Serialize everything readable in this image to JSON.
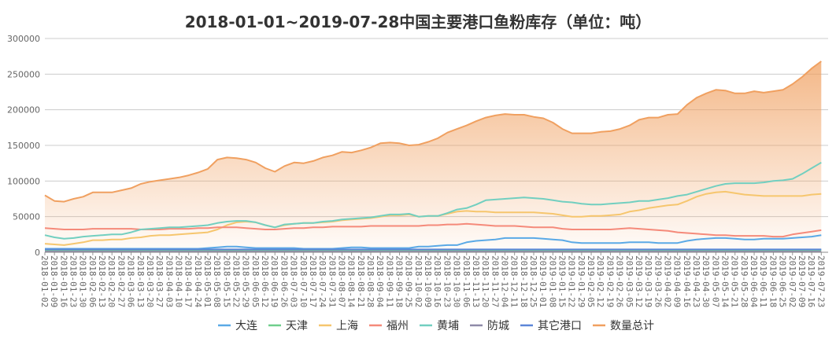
{
  "chart_data": {
    "type": "line",
    "title": "2018-01-01~2019-07-28中国主要港口鱼粉库存（单位：吨）",
    "xlabel": "",
    "ylabel": "",
    "ylim": [
      0,
      300000
    ],
    "yticks": [
      "0",
      "50000",
      "100000",
      "150000",
      "200000",
      "250000",
      "300000"
    ],
    "ytick_values": [
      0,
      50000,
      100000,
      150000,
      200000,
      250000,
      300000
    ],
    "grid": true,
    "legend_position": "bottom",
    "x": [
      "2018-01-02",
      "2018-01-09",
      "2018-01-16",
      "2018-01-23",
      "2018-01-30",
      "2018-02-06",
      "2018-02-13",
      "2018-02-20",
      "2018-02-27",
      "2018-03-06",
      "2018-03-13",
      "2018-03-20",
      "2018-03-27",
      "2018-04-03",
      "2018-04-10",
      "2018-04-17",
      "2018-04-24",
      "2018-05-01",
      "2018-05-08",
      "2018-05-15",
      "2018-05-22",
      "2018-05-29",
      "2018-06-05",
      "2018-06-12",
      "2018-06-19",
      "2018-06-26",
      "2018-07-03",
      "2018-07-10",
      "2018-07-17",
      "2018-07-24",
      "2018-07-31",
      "2018-08-07",
      "2018-08-14",
      "2018-08-21",
      "2018-08-28",
      "2018-09-04",
      "2018-09-11",
      "2018-09-18",
      "2018-09-25",
      "2018-10-02",
      "2018-10-09",
      "2018-10-16",
      "2018-10-23",
      "2018-10-30",
      "2018-11-06",
      "2018-11-13",
      "2018-11-20",
      "2018-11-27",
      "2018-12-04",
      "2018-12-11",
      "2018-12-18",
      "2018-12-25",
      "2019-01-01",
      "2019-01-08",
      "2019-01-15",
      "2019-01-22",
      "2019-01-29",
      "2019-02-05",
      "2019-02-12",
      "2019-02-19",
      "2019-02-26",
      "2019-03-05",
      "2019-03-12",
      "2019-03-19",
      "2019-03-26",
      "2019-04-02",
      "2019-04-09",
      "2019-04-16",
      "2019-04-23",
      "2019-04-30",
      "2019-05-07",
      "2019-05-14",
      "2019-05-21",
      "2019-05-28",
      "2019-06-04",
      "2019-06-11",
      "2019-06-18",
      "2019-06-25",
      "2019-07-02",
      "2019-07-09",
      "2019-07-16",
      "2019-07-23"
    ],
    "series": [
      {
        "name": "大连",
        "color": "#5aa9e6",
        "area": false,
        "values": [
          5000,
          5000,
          5000,
          5000,
          5000,
          5000,
          5000,
          5000,
          5000,
          5000,
          5000,
          5000,
          5000,
          5000,
          5000,
          5000,
          5000,
          6000,
          7000,
          8000,
          8000,
          7000,
          6000,
          6000,
          6000,
          6000,
          6000,
          5000,
          5000,
          5000,
          5000,
          6000,
          7000,
          7000,
          6000,
          6000,
          6000,
          6000,
          6000,
          8000,
          8000,
          9000,
          10000,
          10000,
          14000,
          16000,
          17000,
          18000,
          20000,
          20000,
          20000,
          20000,
          19000,
          18000,
          17000,
          14000,
          13000,
          13000,
          13000,
          13000,
          13000,
          14000,
          14000,
          14000,
          13000,
          13000,
          13000,
          16000,
          18000,
          19000,
          20000,
          20000,
          19000,
          18000,
          18000,
          19000,
          19000,
          19000,
          20000,
          21000,
          22000,
          24000
        ]
      },
      {
        "name": "天津",
        "color": "#6fce8c",
        "area": false,
        "values": [
          3000,
          3000,
          3000,
          3000,
          3000,
          3000,
          3000,
          3000,
          3000,
          3000,
          3000,
          3000,
          3000,
          3000,
          3000,
          3000,
          3000,
          3000,
          3000,
          3000,
          3000,
          3000,
          3000,
          3000,
          3000,
          3000,
          3000,
          3000,
          3000,
          3000,
          3000,
          3000,
          3000,
          3000,
          3000,
          3000,
          3000,
          3000,
          3000,
          3000,
          3000,
          3000,
          3000,
          3000,
          3000,
          3000,
          3000,
          3000,
          3000,
          3000,
          3000,
          3000,
          3000,
          3000,
          3000,
          3000,
          3000,
          3000,
          3000,
          3000,
          3000,
          3000,
          3000,
          3000,
          3000,
          3000,
          3000,
          3000,
          3000,
          3000,
          3000,
          3000,
          3000,
          3000,
          3000,
          3000,
          3000,
          3000,
          3000,
          3000,
          3000,
          3000
        ]
      },
      {
        "name": "上海",
        "color": "#f6c66e",
        "area": false,
        "values": [
          12000,
          11000,
          10000,
          12000,
          14000,
          17000,
          17000,
          18000,
          18000,
          20000,
          21000,
          23000,
          24000,
          24000,
          25000,
          26000,
          27000,
          28000,
          32000,
          38000,
          42000,
          43000,
          42000,
          38000,
          35000,
          38000,
          40000,
          41000,
          41000,
          42000,
          43000,
          45000,
          46000,
          47000,
          48000,
          50000,
          52000,
          52000,
          53000,
          50000,
          51000,
          51000,
          54000,
          57000,
          58000,
          57000,
          57000,
          56000,
          56000,
          56000,
          56000,
          56000,
          55000,
          54000,
          52000,
          50000,
          50000,
          51000,
          51000,
          52000,
          53000,
          57000,
          59000,
          62000,
          64000,
          66000,
          67000,
          72000,
          78000,
          82000,
          84000,
          85000,
          83000,
          81000,
          80000,
          79000,
          79000,
          79000,
          79000,
          79000,
          81000,
          82000
        ]
      },
      {
        "name": "福州",
        "color": "#f58a7a",
        "area": false,
        "values": [
          34000,
          33000,
          32000,
          32000,
          32000,
          33000,
          33000,
          33000,
          33000,
          33000,
          32000,
          32000,
          32000,
          33000,
          33000,
          33000,
          34000,
          34000,
          35000,
          35000,
          35000,
          34000,
          33000,
          32000,
          32000,
          33000,
          34000,
          34000,
          35000,
          35000,
          36000,
          36000,
          36000,
          36000,
          37000,
          37000,
          37000,
          37000,
          37000,
          37000,
          38000,
          38000,
          39000,
          39000,
          40000,
          39000,
          38000,
          37000,
          37000,
          37000,
          36000,
          35000,
          35000,
          35000,
          33000,
          32000,
          32000,
          32000,
          32000,
          32000,
          33000,
          34000,
          33000,
          32000,
          31000,
          30000,
          28000,
          27000,
          26000,
          25000,
          24000,
          24000,
          23000,
          23000,
          23000,
          23000,
          22000,
          22000,
          25000,
          27000,
          29000,
          31000
        ]
      },
      {
        "name": "黄埔",
        "color": "#72cfc0",
        "area": false,
        "values": [
          24000,
          21000,
          19000,
          20000,
          22000,
          23000,
          24000,
          25000,
          25000,
          28000,
          32000,
          33000,
          34000,
          35000,
          35000,
          36000,
          37000,
          38000,
          41000,
          43000,
          44000,
          44000,
          42000,
          38000,
          35000,
          39000,
          40000,
          41000,
          41000,
          43000,
          44000,
          46000,
          47000,
          48000,
          49000,
          51000,
          53000,
          53000,
          54000,
          50000,
          51000,
          51000,
          55000,
          60000,
          62000,
          67000,
          73000,
          74000,
          75000,
          76000,
          77000,
          76000,
          75000,
          73000,
          71000,
          70000,
          68000,
          67000,
          67000,
          68000,
          69000,
          70000,
          72000,
          72000,
          74000,
          76000,
          79000,
          81000,
          85000,
          89000,
          93000,
          96000,
          97000,
          97000,
          97000,
          98000,
          100000,
          101000,
          103000,
          110000,
          118000,
          126000
        ]
      },
      {
        "name": "防城",
        "color": "#8e8aa8",
        "area": false,
        "values": [
          1000,
          1000,
          1000,
          1000,
          1000,
          1000,
          1000,
          1000,
          1000,
          1000,
          1000,
          1000,
          1000,
          1000,
          1000,
          1000,
          1000,
          1000,
          1000,
          1000,
          1000,
          1000,
          1000,
          1000,
          1000,
          1000,
          1000,
          1000,
          1000,
          1000,
          1000,
          1000,
          1000,
          1000,
          1000,
          1000,
          1000,
          1000,
          1000,
          1000,
          1000,
          1000,
          1000,
          1000,
          1000,
          1000,
          1000,
          1000,
          1000,
          1000,
          1000,
          1000,
          1000,
          1000,
          1000,
          1000,
          1000,
          1000,
          1000,
          1000,
          1000,
          1000,
          1000,
          1000,
          1000,
          1000,
          1000,
          1000,
          1000,
          1000,
          1000,
          1000,
          1000,
          1000,
          1000,
          1000,
          1000,
          1000,
          1000,
          1000,
          1000,
          1000
        ]
      },
      {
        "name": "其它港口",
        "color": "#5c86d8",
        "area": false,
        "values": [
          4000,
          4000,
          4000,
          4000,
          4000,
          4000,
          4000,
          4000,
          4000,
          4000,
          4000,
          4000,
          4000,
          4000,
          4000,
          4000,
          4000,
          4000,
          4000,
          4000,
          4000,
          4000,
          4000,
          4000,
          4000,
          4000,
          4000,
          4000,
          4000,
          4000,
          4000,
          4000,
          4000,
          4000,
          4000,
          4000,
          4000,
          4000,
          4000,
          4000,
          4000,
          4000,
          4000,
          4000,
          4000,
          4000,
          4000,
          4000,
          4000,
          4000,
          4000,
          4000,
          4000,
          4000,
          4000,
          4000,
          4000,
          4000,
          4000,
          4000,
          4000,
          4000,
          4000,
          4000,
          4000,
          4000,
          4000,
          4000,
          4000,
          4000,
          4000,
          4000,
          4000,
          4000,
          4000,
          4000,
          4000,
          4000,
          4000,
          4000,
          4000,
          4000
        ]
      },
      {
        "name": "数量总计",
        "color": "#f0a060",
        "area": true,
        "values": [
          80000,
          72000,
          71000,
          75000,
          78000,
          84000,
          84000,
          84000,
          87000,
          90000,
          96000,
          99000,
          101000,
          103000,
          105000,
          108000,
          112000,
          117000,
          130000,
          133000,
          132000,
          130000,
          126000,
          118000,
          113000,
          121000,
          126000,
          125000,
          128000,
          133000,
          136000,
          141000,
          140000,
          143000,
          147000,
          153000,
          154000,
          153000,
          150000,
          151000,
          155000,
          160000,
          168000,
          173000,
          178000,
          184000,
          189000,
          192000,
          194000,
          193000,
          193000,
          190000,
          188000,
          182000,
          173000,
          167000,
          167000,
          167000,
          169000,
          170000,
          173000,
          178000,
          186000,
          189000,
          189000,
          193000,
          194000,
          207000,
          217000,
          223000,
          228000,
          227000,
          223000,
          223000,
          226000,
          224000,
          226000,
          228000,
          236000,
          246000,
          258000,
          268000
        ]
      }
    ]
  }
}
